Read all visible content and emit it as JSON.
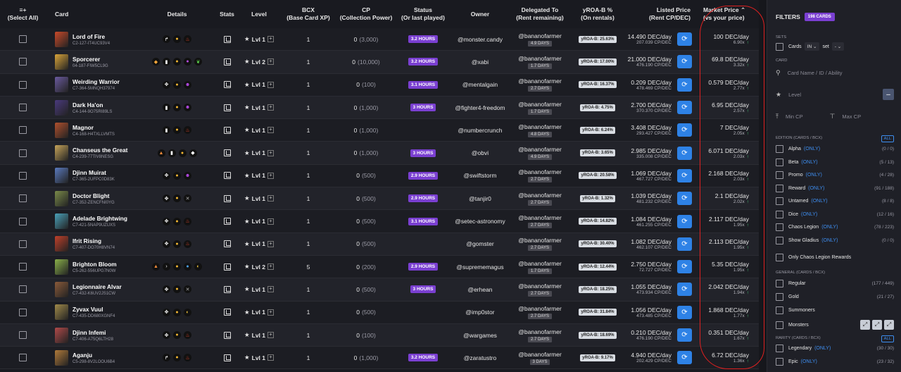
{
  "header": {
    "select_all": "(Select All)",
    "select_icon": "≡+",
    "card": "Card",
    "details": "Details",
    "stats": "Stats",
    "level": "Level",
    "bcx": "BCX",
    "bcx_sub": "(Base Card XP)",
    "cp": "CP",
    "cp_sub": "(Collection Power)",
    "status": "Status",
    "status_sub": "(Or last played)",
    "owner": "Owner",
    "delegated": "Delegated To",
    "delegated_sub": "(Rent remaining)",
    "yroa": "yROA-B %",
    "yroa_sub": "(On rentals)",
    "listed": "Listed Price",
    "listed_sub": "(Rent CP/DEC)",
    "market": "Market Price",
    "market_sub": "(vs your price)"
  },
  "rows": [
    {
      "name": "Lord of Fire",
      "id": "C2-127-IT4UC93V4",
      "color": "#c94a2a",
      "icons": [
        {
          "n": "arrow",
          "g": "↱",
          "c": "#fff"
        },
        {
          "n": "gold",
          "g": "●",
          "c": "#f2b632"
        },
        {
          "n": "fire",
          "g": "♨",
          "c": "#e0442c"
        }
      ],
      "level": "Lvl 1",
      "bcx": "1",
      "cp": "0",
      "cp_sub": "(3,000)",
      "status": "3.2 HOURS",
      "owner": "@monster.candy",
      "deleg": "@bananofarmer",
      "days": "4.9 DAYS",
      "yroa": "yROA-B: 25.63%",
      "price": "14.490 DEC/day",
      "pcp": "207.039 CP/DEC",
      "mkt": "100 DEC/day",
      "vs": "6.90x"
    },
    {
      "name": "Sporcerer",
      "id": "04-187-FIW5CL9G",
      "color": "#d9a43a",
      "icons": [
        {
          "n": "shield",
          "g": "◆",
          "c": "#f2a53a"
        },
        {
          "n": "bar",
          "g": "▮",
          "c": "#fff"
        },
        {
          "n": "gold",
          "g": "●",
          "c": "#f2b632"
        },
        {
          "n": "purple",
          "g": "●",
          "c": "#b64ae8"
        },
        {
          "n": "leaf",
          "g": "❦",
          "c": "#5ad04a"
        }
      ],
      "level": "Lvl 2",
      "bcx": "1",
      "cp": "0",
      "cp_sub": "(10,000)",
      "status": "3.2 HOURS",
      "owner": "@xabi",
      "deleg": "@bananofarmer",
      "days": "1.7 DAYS",
      "yroa": "yROA-B: 17.00%",
      "price": "21.000 DEC/day",
      "pcp": "476.190 CP/DEC",
      "mkt": "69.8 DEC/day",
      "vs": "3.32x"
    },
    {
      "name": "Weirding Warrior",
      "id": "C7-364-5MNQH37974",
      "color": "#6a5a9e",
      "icons": [
        {
          "n": "move",
          "g": "✥",
          "c": "#fff"
        },
        {
          "n": "gold",
          "g": "●",
          "c": "#f2b632"
        },
        {
          "n": "skull",
          "g": "☻",
          "c": "#b64ae8"
        }
      ],
      "level": "Lvl 1",
      "bcx": "1",
      "cp": "0",
      "cp_sub": "(100)",
      "status": "3.1 HOURS",
      "owner": "@mentalgain",
      "deleg": "@bananofarmer",
      "days": "2.7 DAYS",
      "yroa": "yROA-B: 16.37%",
      "price": "0.209 DEC/day",
      "pcp": "478.469 CP/DEC",
      "mkt": "0.579 DEC/day",
      "vs": "2.77x"
    },
    {
      "name": "Dark Ha'on",
      "id": "C4-144-9O75RI89LS",
      "color": "#4a3a7e",
      "icons": [
        {
          "n": "bar",
          "g": "▮",
          "c": "#fff"
        },
        {
          "n": "gold",
          "g": "●",
          "c": "#f2b632"
        },
        {
          "n": "skull",
          "g": "☻",
          "c": "#b64ae8"
        }
      ],
      "level": "Lvl 1",
      "bcx": "1",
      "cp": "0",
      "cp_sub": "(1,000)",
      "status": "3 HOURS",
      "owner": "@fighter4-freedom",
      "deleg": "@bananofarmer",
      "days": "1.7 DAYS",
      "yroa": "yROA-B: 4.75%",
      "price": "2.700 DEC/day",
      "pcp": "370.370 CP/DEC",
      "mkt": "6.95 DEC/day",
      "vs": "2.57x"
    },
    {
      "name": "Magnor",
      "id": "C4-168-H4TXLLVMTS",
      "color": "#b0502e",
      "icons": [
        {
          "n": "bar",
          "g": "▮",
          "c": "#fff"
        },
        {
          "n": "gold",
          "g": "●",
          "c": "#f2b632"
        },
        {
          "n": "fire",
          "g": "♨",
          "c": "#e0442c"
        }
      ],
      "level": "Lvl 1",
      "bcx": "1",
      "cp": "0",
      "cp_sub": "(1,000)",
      "status": "",
      "owner": "@numbercrunch",
      "deleg": "@bananofarmer",
      "days": "4.8 DAYS",
      "yroa": "yROA-B: 6.24%",
      "price": "3.408 DEC/day",
      "pcp": "293.427 CP/DEC",
      "mkt": "7 DEC/day",
      "vs": "2.05x"
    },
    {
      "name": "Chanseus the Great",
      "id": "C4-239-77TIV8NESG",
      "color": "#c6a45a",
      "icons": [
        {
          "n": "flame",
          "g": "▲",
          "c": "#f28a3a"
        },
        {
          "n": "bar",
          "g": "▮",
          "c": "#fff"
        },
        {
          "n": "gold",
          "g": "●",
          "c": "#f2b632"
        },
        {
          "n": "diamond",
          "g": "◆",
          "c": "#fff"
        }
      ],
      "level": "Lvl 1",
      "bcx": "1",
      "cp": "0",
      "cp_sub": "(1,000)",
      "status": "3 HOURS",
      "owner": "@obvi",
      "deleg": "@bananofarmer",
      "days": "4.9 DAYS",
      "yroa": "yROA-B: 3.65%",
      "price": "2.985 DEC/day",
      "pcp": "335.008 CP/DEC",
      "mkt": "6.071 DEC/day",
      "vs": "2.03x"
    },
    {
      "name": "Djinn Muirat",
      "id": "C7-365-2UFPC0D83K",
      "color": "#5a7abe",
      "icons": [
        {
          "n": "move",
          "g": "✥",
          "c": "#fff"
        },
        {
          "n": "gold",
          "g": "●",
          "c": "#f2b632"
        },
        {
          "n": "skull",
          "g": "☻",
          "c": "#b64ae8"
        }
      ],
      "level": "Lvl 1",
      "bcx": "1",
      "cp": "0",
      "cp_sub": "(500)",
      "status": "2.9 HOURS",
      "owner": "@swiftstorm",
      "deleg": "@bananofarmer",
      "days": "2.7 DAYS",
      "yroa": "yROA-B: 20.58%",
      "price": "1.069 DEC/day",
      "pcp": "467.727 CP/DEC",
      "mkt": "2.168 DEC/day",
      "vs": "2.03x"
    },
    {
      "name": "Doctor Blight",
      "id": "C7-352-ZENCFNI0YG",
      "color": "#7a8a4a",
      "icons": [
        {
          "n": "move",
          "g": "✥",
          "c": "#fff"
        },
        {
          "n": "gold",
          "g": "●",
          "c": "#f2b632"
        },
        {
          "n": "cross",
          "g": "✕",
          "c": "#aaa"
        }
      ],
      "level": "Lvl 1",
      "bcx": "1",
      "cp": "0",
      "cp_sub": "(500)",
      "status": "2.9 HOURS",
      "owner": "@tanjir0",
      "deleg": "@bananofarmer",
      "days": "2.7 DAYS",
      "yroa": "yROA-B: 1.32%",
      "price": "1.039 DEC/day",
      "pcp": "481.232 CP/DEC",
      "mkt": "2.1 DEC/day",
      "vs": "2.02x"
    },
    {
      "name": "Adelade Brightwing",
      "id": "C7-421-5NAP9UZUXS",
      "color": "#4aa0b8",
      "icons": [
        {
          "n": "move",
          "g": "✥",
          "c": "#fff"
        },
        {
          "n": "gold",
          "g": "●",
          "c": "#f2b632"
        },
        {
          "n": "fire",
          "g": "♨",
          "c": "#e0442c"
        }
      ],
      "level": "Lvl 1",
      "bcx": "1",
      "cp": "0",
      "cp_sub": "(500)",
      "status": "3.1 HOURS",
      "owner": "@setec-astronomy",
      "deleg": "@bananofarmer",
      "days": "2.7 DAYS",
      "yroa": "yROA-B: 14.82%",
      "price": "1.084 DEC/day",
      "pcp": "461.255 CP/DEC",
      "mkt": "2.117 DEC/day",
      "vs": "1.95x"
    },
    {
      "name": "Ifrit Rising",
      "id": "C7-407-DO70H8VN74",
      "color": "#c0402a",
      "icons": [
        {
          "n": "move",
          "g": "✥",
          "c": "#fff"
        },
        {
          "n": "gold",
          "g": "●",
          "c": "#f2b632"
        },
        {
          "n": "fire",
          "g": "♨",
          "c": "#e0442c"
        }
      ],
      "level": "Lvl 1",
      "bcx": "1",
      "cp": "0",
      "cp_sub": "(500)",
      "status": "",
      "owner": "@gomster",
      "deleg": "@bananofarmer",
      "days": "2.7 DAYS",
      "yroa": "yROA-B: 30.40%",
      "price": "1.082 DEC/day",
      "pcp": "462.107 CP/DEC",
      "mkt": "2.113 DEC/day",
      "vs": "1.95x"
    },
    {
      "name": "Brighton Bloom",
      "id": "C5-262-556UPG7N0W",
      "color": "#8ab04a",
      "icons": [
        {
          "n": "flame",
          "g": "▲",
          "c": "#f28a3a"
        },
        {
          "n": "chevron",
          "g": "›",
          "c": "#fff"
        },
        {
          "n": "gold",
          "g": "●",
          "c": "#f2b632"
        },
        {
          "n": "blue",
          "g": "●",
          "c": "#4aa0f0"
        },
        {
          "n": "moon",
          "g": "◐",
          "c": "#f2c43a"
        }
      ],
      "level": "Lvl 2",
      "bcx": "5",
      "cp": "0",
      "cp_sub": "(200)",
      "status": "2.9 HOURS",
      "owner": "@suprememagus",
      "deleg": "@bananofarmer",
      "days": "1.7 DAYS",
      "yroa": "yROA-B: 12.44%",
      "price": "2.750 DEC/day",
      "pcp": "72.727 CP/DEC",
      "mkt": "5.35 DEC/day",
      "vs": "1.95x"
    },
    {
      "name": "Legionnaire Alvar",
      "id": "C7-432-K6UV2JS1CW",
      "color": "#8a5a3a",
      "icons": [
        {
          "n": "move",
          "g": "✥",
          "c": "#fff"
        },
        {
          "n": "gold",
          "g": "●",
          "c": "#f2b632"
        },
        {
          "n": "cross",
          "g": "✕",
          "c": "#aaa"
        }
      ],
      "level": "Lvl 1",
      "bcx": "1",
      "cp": "0",
      "cp_sub": "(500)",
      "status": "3 HOURS",
      "owner": "@erhean",
      "deleg": "@bananofarmer",
      "days": "2.7 DAYS",
      "yroa": "yROA-B: 18.25%",
      "price": "1.055 DEC/day",
      "pcp": "473.934 CP/DEC",
      "mkt": "2.042 DEC/day",
      "vs": "1.94x"
    },
    {
      "name": "Zyvax Vuul",
      "id": "C7-435-DD680XGNF4",
      "color": "#a08a4a",
      "icons": [
        {
          "n": "move",
          "g": "✥",
          "c": "#fff"
        },
        {
          "n": "gold",
          "g": "●",
          "c": "#f2b632"
        },
        {
          "n": "moon",
          "g": "◐",
          "c": "#f2c43a"
        }
      ],
      "level": "Lvl 1",
      "bcx": "1",
      "cp": "0",
      "cp_sub": "(500)",
      "status": "",
      "owner": "@imp0stor",
      "deleg": "@bananofarmer",
      "days": "2.7 DAYS",
      "yroa": "yROA-B: 31.84%",
      "price": "1.056 DEC/day",
      "pcp": "473.485 CP/DEC",
      "mkt": "1.868 DEC/day",
      "vs": "1.77x"
    },
    {
      "name": "Djinn Infemi",
      "id": "C7-406-A75Q6LTH28",
      "color": "#b04a4a",
      "icons": [
        {
          "n": "move",
          "g": "✥",
          "c": "#fff"
        },
        {
          "n": "gold",
          "g": "●",
          "c": "#f2b632"
        },
        {
          "n": "fire",
          "g": "♨",
          "c": "#e0442c"
        }
      ],
      "level": "Lvl 1",
      "bcx": "1",
      "cp": "0",
      "cp_sub": "(100)",
      "status": "",
      "owner": "@wargames",
      "deleg": "@bananofarmer",
      "days": "2.7 DAYS",
      "yroa": "yROA-B: 18.69%",
      "price": "0.210 DEC/day",
      "pcp": "476.190 CP/DEC",
      "mkt": "0.351 DEC/day",
      "vs": "1.67x"
    },
    {
      "name": "Aganju",
      "id": "C5-298-8V2LOOU6B4",
      "color": "#b07a3a",
      "icons": [
        {
          "n": "arrow",
          "g": "↱",
          "c": "#fff"
        },
        {
          "n": "gold",
          "g": "●",
          "c": "#f2b632"
        },
        {
          "n": "fire",
          "g": "♨",
          "c": "#e0442c"
        }
      ],
      "level": "Lvl 1",
      "bcx": "1",
      "cp": "0",
      "cp_sub": "(1,000)",
      "status": "3.2 HOURS",
      "owner": "@zaratustro",
      "deleg": "@bananofarmer",
      "days": "3 DAYS",
      "yroa": "yROA-B: 9.17%",
      "price": "4.940 DEC/day",
      "pcp": "202.429 CP/DEC",
      "mkt": "6.72 DEC/day",
      "vs": "1.36x"
    }
  ],
  "sidebar": {
    "title": "FILTERS",
    "count": "198 CARDS",
    "sets_label": "SETS",
    "cards_label": "Cards",
    "in_value": "IN",
    "set_label": "set",
    "set_value": "-",
    "card_label": "CARD",
    "card_placeholder": "Card Name / ID / Ability",
    "level_label": "Level",
    "min_cp": "Min CP",
    "max_cp": "Max CP",
    "edition_label": "EDITION (CARDS / BCX)",
    "all": "ALL",
    "only": "(ONLY)",
    "editions": [
      {
        "name": "Alpha",
        "count": "(0 / 0)"
      },
      {
        "name": "Beta",
        "count": "(5 / 13)"
      },
      {
        "name": "Promo",
        "count": "(4 / 28)"
      },
      {
        "name": "Reward",
        "count": "(91 / 188)"
      },
      {
        "name": "Untamed",
        "count": "(8 / 8)"
      },
      {
        "name": "Dice",
        "count": "(12 / 16)"
      },
      {
        "name": "Chaos Legion",
        "count": "(78 / 223)"
      },
      {
        "name": "Show Gladius",
        "count": "(0 / 0)"
      }
    ],
    "only_chaos": "Only Chaos Legion Rewards",
    "general_label": "GENERAL (CARDS / BCX)",
    "general": [
      {
        "name": "Regular",
        "count": "(177 / 449)"
      },
      {
        "name": "Gold",
        "count": "(21 / 27)"
      },
      {
        "name": "Summoners",
        "count": ""
      },
      {
        "name": "Monsters",
        "count": ""
      }
    ],
    "rarity_label": "RARITY (CARDS / BCX)",
    "rarity": [
      {
        "name": "Legendary",
        "count": "(30 / 30)"
      },
      {
        "name": "Epic",
        "count": "(23 / 32)"
      }
    ]
  }
}
